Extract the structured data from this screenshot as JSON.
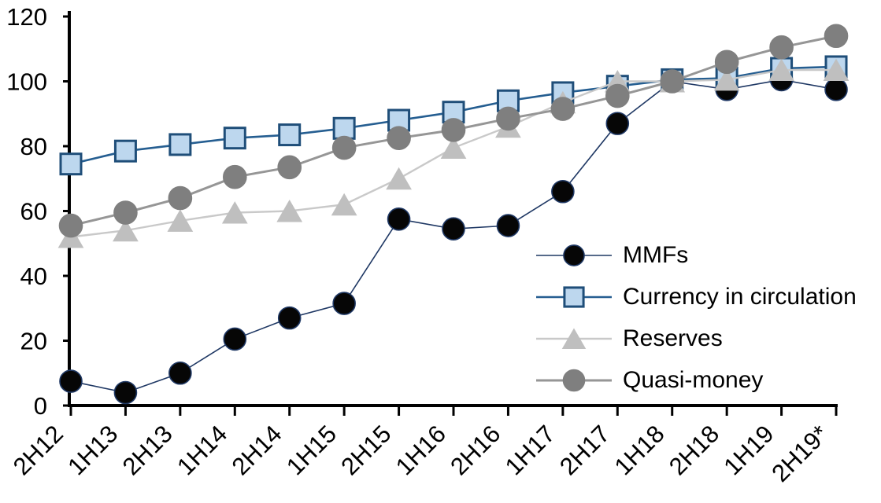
{
  "chart_data": {
    "type": "line",
    "categories": [
      "2H12",
      "1H13",
      "2H13",
      "1H14",
      "2H14",
      "1H15",
      "2H15",
      "1H16",
      "2H16",
      "1H17",
      "2H17",
      "1H18",
      "2H18",
      "1H19",
      "2H19*"
    ],
    "series": [
      {
        "name": "MMFs",
        "marker": "circle",
        "marker_fill": "#060606",
        "marker_stroke": "#1F3864",
        "line_color": "#1F3864",
        "line_width": 1.6,
        "marker_size": 28,
        "values": [
          7.5,
          4,
          10,
          20.5,
          27,
          31.5,
          57.5,
          54.5,
          55.5,
          66,
          87,
          100,
          97.5,
          100.5,
          97.5
        ]
      },
      {
        "name": "Currency in circulation",
        "marker": "square",
        "marker_fill": "#BDD7EE",
        "marker_stroke": "#1F4E79",
        "line_color": "#255E91",
        "line_width": 2.6,
        "marker_size": 26,
        "values": [
          74.5,
          78.5,
          80.5,
          82.5,
          83.5,
          85.5,
          88,
          90.5,
          94,
          96.5,
          98.5,
          100.5,
          101,
          104,
          104.5
        ]
      },
      {
        "name": "Reserves",
        "marker": "triangle",
        "marker_fill": "#BFBFBF",
        "marker_stroke": "#BFBFBF",
        "line_color": "#C9C9C9",
        "line_width": 2.4,
        "marker_size": 31,
        "values": [
          52,
          54,
          57,
          59.5,
          60,
          62,
          70,
          79.5,
          86,
          93.5,
          100,
          100,
          100.5,
          103.5,
          103.5
        ]
      },
      {
        "name": "Quasi-money",
        "marker": "circle",
        "marker_fill": "#7F7F7F",
        "marker_stroke": "#7F7F7F",
        "line_color": "#969696",
        "line_width": 3,
        "marker_size": 29,
        "values": [
          55.5,
          59.5,
          64,
          70.5,
          73.5,
          79.5,
          82.5,
          85,
          88.5,
          91.5,
          95.5,
          100,
          106,
          110.5,
          114
        ]
      }
    ],
    "ylim": [
      0,
      120
    ],
    "yticks": [
      0,
      20,
      40,
      60,
      80,
      100,
      120
    ],
    "grid": false,
    "legend_position": "center-right",
    "axis_color": "#000000",
    "background_color": "#FFFFFF"
  }
}
